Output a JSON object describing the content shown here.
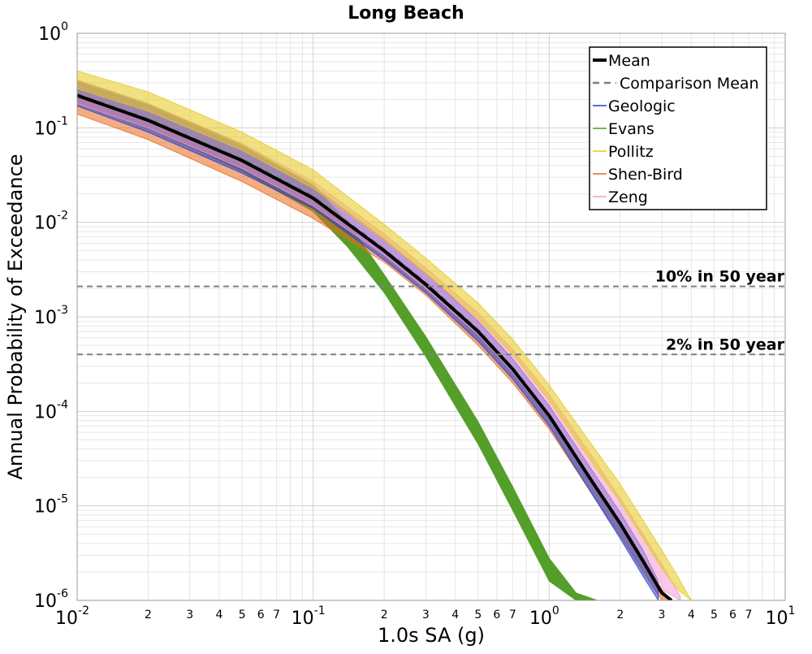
{
  "chart_data": {
    "type": "line",
    "title": "Long Beach",
    "xlabel": "1.0s SA (g)",
    "ylabel": "Annual Probability of Exceedance",
    "x_scale": "log",
    "y_scale": "log",
    "xlim": [
      0.01,
      10
    ],
    "ylim": [
      1e-06,
      1
    ],
    "grid": true,
    "legend_position": "top-right",
    "x_major_ticks": [
      {
        "value": 0.01,
        "base": "10",
        "exp": "-2"
      },
      {
        "value": 0.1,
        "base": "10",
        "exp": "-1"
      },
      {
        "value": 1,
        "base": "10",
        "exp": "0"
      },
      {
        "value": 10,
        "base": "10",
        "exp": "1"
      }
    ],
    "y_major_ticks": [
      {
        "value": 1,
        "base": "10",
        "exp": "0"
      },
      {
        "value": 0.1,
        "base": "10",
        "exp": "-1"
      },
      {
        "value": 0.01,
        "base": "10",
        "exp": "-2"
      },
      {
        "value": 0.001,
        "base": "10",
        "exp": "-3"
      },
      {
        "value": 0.0001,
        "base": "10",
        "exp": "-4"
      },
      {
        "value": 1e-05,
        "base": "10",
        "exp": "-5"
      },
      {
        "value": 1e-06,
        "base": "10",
        "exp": "-6"
      }
    ],
    "x_minor_tick_labels": [
      "2",
      "3",
      "4",
      "5",
      "6",
      "7"
    ],
    "reference_lines": [
      {
        "label": "10% in 50 year",
        "y": 0.0021
      },
      {
        "label": "2% in 50 year",
        "y": 0.0004
      }
    ],
    "series": [
      {
        "name": "Mean",
        "color": "#000000",
        "style": "solid-thick",
        "x": [
          0.01,
          0.02,
          0.05,
          0.1,
          0.2,
          0.3,
          0.5,
          0.7,
          1.0,
          1.5,
          2.0,
          2.5,
          3.0,
          3.3
        ],
        "y": [
          0.22,
          0.12,
          0.045,
          0.018,
          0.005,
          0.0022,
          0.0007,
          0.00028,
          9e-05,
          1.9e-05,
          6.5e-06,
          2.6e-06,
          1.2e-06,
          1e-06
        ]
      },
      {
        "name": "Comparison Mean",
        "color": "#7f7f7f",
        "style": "dashed",
        "x": [
          0.01,
          0.02,
          0.05,
          0.1,
          0.2,
          0.3,
          0.5,
          0.7,
          1.0,
          1.5,
          2.0,
          2.5,
          3.0,
          3.3
        ],
        "y": [
          0.23,
          0.125,
          0.047,
          0.019,
          0.0052,
          0.0023,
          0.00073,
          0.00029,
          9.2e-05,
          1.95e-05,
          6.7e-06,
          2.7e-06,
          1.25e-06,
          1e-06
        ]
      },
      {
        "name": "Geologic",
        "color": "#1f3fd6",
        "style": "band",
        "x": [
          0.01,
          0.02,
          0.05,
          0.1,
          0.2,
          0.3,
          0.5,
          0.7,
          1.0,
          1.5,
          2.0,
          2.5,
          2.9
        ],
        "y_low": [
          0.17,
          0.09,
          0.033,
          0.014,
          0.004,
          0.0018,
          0.00055,
          0.00022,
          7e-05,
          1.4e-05,
          4.5e-06,
          1.8e-06,
          1e-06
        ],
        "y_high": [
          0.3,
          0.17,
          0.062,
          0.024,
          0.0066,
          0.0029,
          0.0009,
          0.00036,
          0.000115,
          2.5e-05,
          8.5e-06,
          3.4e-06,
          1.6e-06
        ]
      },
      {
        "name": "Evans",
        "color": "#4a9a1e",
        "style": "band",
        "x": [
          0.01,
          0.02,
          0.05,
          0.1,
          0.14,
          0.2,
          0.3,
          0.5,
          0.7,
          1.0,
          1.3,
          1.6
        ],
        "y_low": [
          0.18,
          0.1,
          0.035,
          0.013,
          0.0055,
          0.0018,
          0.00038,
          4.5e-05,
          9e-06,
          1.6e-06,
          1e-06,
          1e-06
        ],
        "y_high": [
          0.32,
          0.18,
          0.066,
          0.025,
          0.01,
          0.0028,
          0.00062,
          7.8e-05,
          1.6e-05,
          2.8e-06,
          1.2e-06,
          1e-06
        ]
      },
      {
        "name": "Pollitz",
        "color": "#e6c81e",
        "style": "band",
        "x": [
          0.01,
          0.02,
          0.05,
          0.1,
          0.2,
          0.3,
          0.5,
          0.7,
          1.0,
          1.5,
          2.0,
          2.5,
          3.0,
          3.5,
          4.0
        ],
        "y_low": [
          0.26,
          0.15,
          0.058,
          0.023,
          0.0065,
          0.0029,
          0.00095,
          0.0004,
          0.00013,
          3e-05,
          1.1e-05,
          4.5e-06,
          2.2e-06,
          1.3e-06,
          1e-06
        ],
        "y_high": [
          0.4,
          0.24,
          0.09,
          0.036,
          0.0095,
          0.0042,
          0.0014,
          0.00058,
          0.00019,
          4.6e-05,
          1.7e-05,
          7e-06,
          3.4e-06,
          1.8e-06,
          1e-06
        ]
      },
      {
        "name": "Shen-Bird",
        "color": "#e8691e",
        "style": "band",
        "x": [
          0.01,
          0.02,
          0.05,
          0.1,
          0.2,
          0.3,
          0.5,
          0.7,
          1.0,
          1.5,
          2.0,
          2.5,
          3.0,
          3.3
        ],
        "y_low": [
          0.14,
          0.075,
          0.027,
          0.011,
          0.0038,
          0.0017,
          0.0005,
          0.0002,
          6.5e-05,
          1.4e-05,
          4.8e-06,
          2e-06,
          1e-06,
          1e-06
        ],
        "y_high": [
          0.22,
          0.12,
          0.045,
          0.018,
          0.0052,
          0.0023,
          0.00072,
          0.00029,
          9.5e-05,
          2e-05,
          6.8e-06,
          2.7e-06,
          1.3e-06,
          1e-06
        ]
      },
      {
        "name": "Zeng",
        "color": "#f29ad2",
        "style": "band",
        "x": [
          0.01,
          0.02,
          0.05,
          0.1,
          0.2,
          0.3,
          0.5,
          0.7,
          1.0,
          1.5,
          2.0,
          2.5,
          3.0,
          3.6
        ],
        "y_low": [
          0.18,
          0.1,
          0.037,
          0.015,
          0.0045,
          0.002,
          0.00065,
          0.00026,
          8.5e-05,
          1.9e-05,
          6.6e-06,
          2.7e-06,
          1.3e-06,
          1e-06
        ],
        "y_high": [
          0.32,
          0.18,
          0.068,
          0.027,
          0.0075,
          0.0033,
          0.0011,
          0.00045,
          0.00015,
          3.5e-05,
          1.2e-05,
          5e-06,
          2.4e-06,
          1.1e-06
        ]
      }
    ]
  }
}
